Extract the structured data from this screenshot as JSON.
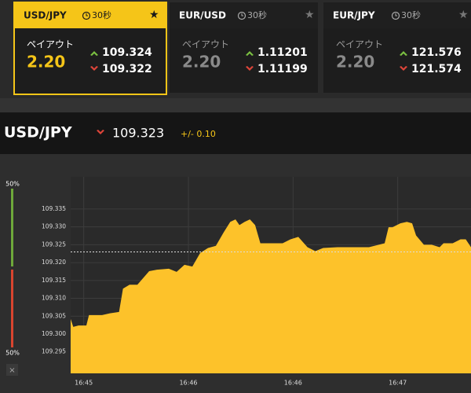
{
  "cards": [
    {
      "pair": "USD/JPY",
      "timer": "30秒",
      "payout_label": "ペイアウト",
      "payout": "2.20",
      "ask": "109.324",
      "bid": "109.322",
      "active": true
    },
    {
      "pair": "EUR/USD",
      "timer": "30秒",
      "payout_label": "ペイアウト",
      "payout": "2.20",
      "ask": "1.11201",
      "bid": "1.11199",
      "active": false
    },
    {
      "pair": "EUR/JPY",
      "timer": "30秒",
      "payout_label": "ペイアウト",
      "payout": "2.20",
      "ask": "121.576",
      "bid": "121.574",
      "active": false
    }
  ],
  "header": {
    "pair": "USD/JPY",
    "price": 109.323,
    "change": "+/- 0.10"
  },
  "sentiment": {
    "up": {
      "value": 50,
      "label": "50%"
    },
    "down": {
      "value": 50,
      "label": "50%"
    },
    "close": "×"
  },
  "chart_data": {
    "type": "area",
    "color": "#fdc22a",
    "grid": true,
    "x": [
      -5,
      -4,
      -2,
      1,
      2,
      7,
      10,
      13.5,
      15,
      17.5,
      20.5,
      25,
      28,
      32.5,
      35.5,
      38.5,
      41.5,
      44.5,
      47.5,
      50.5,
      53.5,
      56,
      58,
      59.5,
      61.5,
      63.5,
      65.5,
      67.5,
      71.5,
      76,
      79,
      82,
      85.5,
      88.5,
      91.5,
      97,
      103,
      109,
      115,
      116.5,
      118,
      121,
      123.5,
      125.5,
      127,
      130,
      133,
      136,
      137.5,
      141,
      144,
      146,
      148
    ],
    "values": [
      109.3042,
      109.302,
      109.3024,
      109.3024,
      109.3053,
      109.3053,
      109.3058,
      109.3062,
      109.3127,
      109.3138,
      109.3138,
      109.3176,
      109.318,
      109.3183,
      109.3174,
      109.3194,
      109.3189,
      109.3227,
      109.3241,
      109.3247,
      109.3285,
      109.3314,
      109.3321,
      109.3305,
      109.3314,
      109.3321,
      109.3305,
      109.3254,
      109.3254,
      109.3254,
      109.3265,
      109.3272,
      109.3243,
      109.3232,
      109.3241,
      109.3243,
      109.3243,
      109.3243,
      109.3254,
      109.3299,
      109.3299,
      109.331,
      109.3314,
      109.331,
      109.3276,
      109.325,
      109.325,
      109.3243,
      109.3254,
      109.3254,
      109.3265,
      109.3265,
      109.3243
    ],
    "xlim": [
      -5,
      148
    ],
    "ylim": [
      109.289,
      109.344
    ],
    "xticks": [
      {
        "value": 0,
        "label": "16:45"
      },
      {
        "value": 40,
        "label": "16:46"
      },
      {
        "value": 80,
        "label": "16:46"
      },
      {
        "value": 120,
        "label": "16:47"
      }
    ],
    "yticks": [
      109.295,
      {
        "value": 109.3,
        "label": "109.300"
      },
      109.305,
      {
        "value": 109.31,
        "label": "109.310"
      },
      109.315,
      {
        "value": 109.32,
        "label": "109.320"
      },
      109.325,
      {
        "value": 109.33,
        "label": "109.330"
      },
      109.335
    ]
  }
}
